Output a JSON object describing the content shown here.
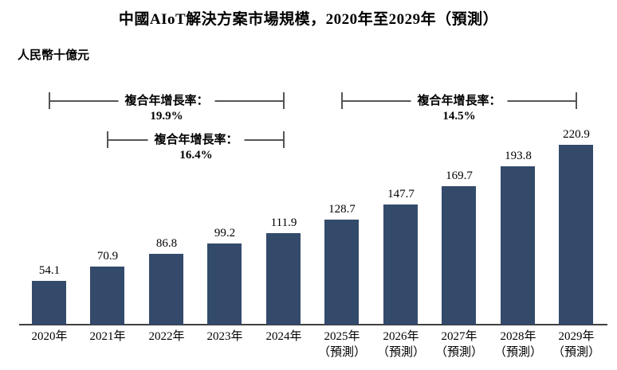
{
  "title": "中國AIoT解決方案市場規模，2020年至2029年（預測）",
  "unit_label": "人民幣十億元",
  "colors": {
    "bar": "#334A6B",
    "axis_line": "#404040",
    "bracket_line": "#555555",
    "text": "#000000",
    "background": "#FFFFFF"
  },
  "chart_data": {
    "type": "bar",
    "title": "中國AIoT解決方案市場規模，2020年至2029年（預測）",
    "ylabel": "人民幣十億元",
    "xlabel": "",
    "categories": [
      "2020年",
      "2021年",
      "2022年",
      "2023年",
      "2024年",
      "2025年（預測）",
      "2026年（預測）",
      "2027年（預測）",
      "2028年（預測）",
      "2029年（預測）"
    ],
    "tick_lines": [
      [
        "2020年"
      ],
      [
        "2021年"
      ],
      [
        "2022年"
      ],
      [
        "2023年"
      ],
      [
        "2024年"
      ],
      [
        "2025年",
        "（預測）"
      ],
      [
        "2026年",
        "（預測）"
      ],
      [
        "2027年",
        "（預測）"
      ],
      [
        "2028年",
        "（預測）"
      ],
      [
        "2029年",
        "（預測）"
      ]
    ],
    "values": [
      54.1,
      70.9,
      86.8,
      99.2,
      111.9,
      128.7,
      147.7,
      169.7,
      193.8,
      220.9
    ],
    "data_labels": true,
    "grid": false,
    "legend": "none",
    "ylim": [
      0,
      230
    ],
    "annotations": [
      {
        "label": "複合年增長率：",
        "value": "19.9%",
        "from": "2020年",
        "to": "2024年",
        "from_index": 0,
        "to_index": 4,
        "row": 0
      },
      {
        "label": "複合年增長率：",
        "value": "16.4%",
        "from": "2021年",
        "to": "2024年",
        "from_index": 1,
        "to_index": 4,
        "row": 1
      },
      {
        "label": "複合年增長率：",
        "value": "14.5%",
        "from": "2025年",
        "to": "2029年",
        "from_index": 5,
        "to_index": 9,
        "row": 0
      }
    ]
  }
}
